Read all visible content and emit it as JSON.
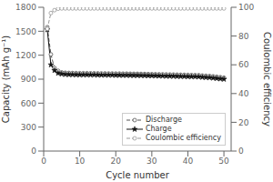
{
  "chart_data": {
    "type": "line",
    "xlabel": "Cycle number",
    "ylabel": "Capacity (mAh g⁻¹)",
    "y2label": "Coulombic efficiency",
    "x": [
      1,
      2,
      3,
      4,
      5,
      6,
      7,
      8,
      9,
      10,
      11,
      12,
      13,
      14,
      15,
      16,
      17,
      18,
      19,
      20,
      21,
      22,
      23,
      24,
      25,
      26,
      27,
      28,
      29,
      30,
      31,
      32,
      33,
      34,
      35,
      36,
      37,
      38,
      39,
      40,
      41,
      42,
      43,
      44,
      45,
      46,
      47,
      48,
      49,
      50
    ],
    "xlim": [
      0,
      52
    ],
    "xticks": [
      0,
      10,
      20,
      30,
      40,
      50
    ],
    "ylim": [
      0,
      1800
    ],
    "yticks": [
      0,
      300,
      600,
      900,
      1200,
      1500,
      1800
    ],
    "y2lim": [
      0,
      100
    ],
    "y2ticks": [
      0,
      20,
      40,
      60,
      80,
      100
    ],
    "legend": "lower right",
    "series": [
      {
        "name": "Discharge",
        "color": "#555555",
        "marker": "circle",
        "line_style": "dashed",
        "axis": "y",
        "values": [
          1550,
          1210,
          1040,
          1005,
          985,
          980,
          978,
          977,
          976,
          975,
          975,
          975,
          974,
          974,
          973,
          972,
          972,
          971,
          971,
          970,
          970,
          969,
          969,
          968,
          967,
          967,
          966,
          965,
          964,
          963,
          962,
          961,
          960,
          959,
          958,
          957,
          956,
          955,
          954,
          953,
          952,
          951,
          950,
          945,
          942,
          940,
          935,
          930,
          925,
          918
        ]
      },
      {
        "name": "Charge",
        "color": "#111111",
        "marker": "star",
        "line_style": "solid",
        "axis": "y",
        "values": [
          1520,
          1080,
          1010,
          975,
          965,
          960,
          958,
          957,
          956,
          955,
          955,
          955,
          954,
          954,
          953,
          952,
          952,
          951,
          951,
          950,
          950,
          949,
          949,
          948,
          947,
          947,
          946,
          945,
          944,
          943,
          942,
          941,
          940,
          939,
          938,
          937,
          936,
          935,
          934,
          933,
          932,
          931,
          930,
          925,
          922,
          920,
          915,
          910,
          905,
          900
        ]
      },
      {
        "name": "Coulombic efficiency",
        "color": "#999999",
        "marker": "circle",
        "line_style": "dashed",
        "axis": "y2",
        "values": [
          85,
          96,
          98,
          99,
          99.2,
          99.2,
          99.2,
          99.2,
          99.2,
          99.2,
          99.2,
          99.2,
          99.2,
          99.2,
          99.2,
          99.2,
          99.2,
          99.2,
          99.2,
          99.2,
          99.2,
          99.2,
          99.2,
          99.2,
          99.2,
          99.2,
          99.2,
          99.2,
          99.2,
          99.2,
          99.2,
          99.2,
          99.2,
          99.2,
          99.2,
          99.2,
          99.2,
          99.2,
          99.2,
          99.2,
          99.2,
          99.2,
          99.2,
          99.2,
          99.2,
          99.2,
          99.2,
          99.2,
          99.2,
          99.2
        ]
      }
    ]
  }
}
